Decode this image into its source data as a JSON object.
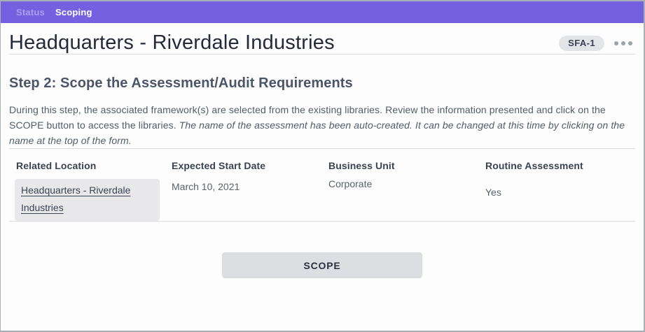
{
  "nav": {
    "items": [
      {
        "label": "Status",
        "active": false
      },
      {
        "label": "Scoping",
        "active": true
      }
    ]
  },
  "header": {
    "title": "Headquarters - Riverdale Industries",
    "badge": "SFA-1"
  },
  "section": {
    "heading": "Step 2: Scope the Assessment/Audit Requirements",
    "description_normal": "During this step, the associated framework(s) are selected from the existing libraries. Review the information presented and click on the SCOPE button to access the libraries. ",
    "description_italic": "The name of the assessment has been auto-created. It can be changed at this time by clicking on the name at the top of the form."
  },
  "fields": [
    {
      "label": "Related Location",
      "value": "Headquarters - Riverdale Industries",
      "type": "link-box"
    },
    {
      "label": "Expected Start Date",
      "value": "March 10, 2021",
      "type": "text"
    },
    {
      "label": "Business Unit",
      "value": "Corporate",
      "type": "text"
    },
    {
      "label": "Routine Assessment",
      "value": "Yes",
      "type": "text"
    }
  ],
  "actions": {
    "scope_label": "SCOPE"
  },
  "icons": {
    "menu": "ellipsis-icon"
  },
  "colors": {
    "accent_purple": "#7561E0",
    "nav_inactive_text": "#AB9FF0",
    "nav_active_text": "#FFFFFF",
    "title_text": "#252A3A",
    "badge_bg": "#E3E4E8",
    "badge_text": "#3A4154",
    "heading_text": "#4A5568",
    "body_text": "#515C68",
    "link_box_bg": "#E8E8EA",
    "button_bg": "#DCDEE1",
    "divider": "#D9DADC",
    "page_bg": "#FDFDFD"
  }
}
